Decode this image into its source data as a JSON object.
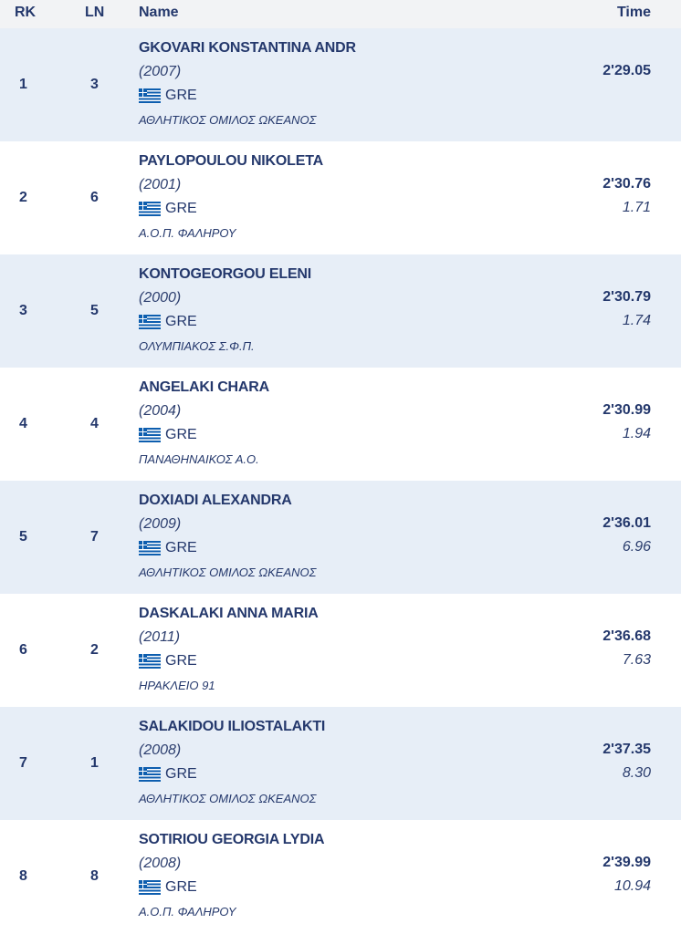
{
  "header": {
    "rk": "RK",
    "ln": "LN",
    "name": "Name",
    "time": "Time"
  },
  "results": [
    {
      "rank": "1",
      "lane": "3",
      "name": "GKOVARI KONSTANTINA ANDR",
      "year": "(2007)",
      "country": "GRE",
      "club": "ΑΘΛΗΤΙΚΟΣ ΟΜΙΛΟΣ ΩΚΕΑΝΟΣ",
      "time": "2'29.05",
      "behind": ""
    },
    {
      "rank": "2",
      "lane": "6",
      "name": "PAYLOPOULOU NIKOLETA",
      "year": "(2001)",
      "country": "GRE",
      "club": "Α.Ο.Π. ΦΑΛΗΡΟΥ",
      "time": "2'30.76",
      "behind": "1.71"
    },
    {
      "rank": "3",
      "lane": "5",
      "name": "KONTOGEORGOU ELENI",
      "year": "(2000)",
      "country": "GRE",
      "club": "ΟΛΥΜΠΙΑΚΟΣ Σ.Φ.Π.",
      "time": "2'30.79",
      "behind": "1.74"
    },
    {
      "rank": "4",
      "lane": "4",
      "name": "ANGELAKI CHARA",
      "year": "(2004)",
      "country": "GRE",
      "club": "ΠΑΝΑΘΗΝΑΙΚΟΣ Α.Ο.",
      "time": "2'30.99",
      "behind": "1.94"
    },
    {
      "rank": "5",
      "lane": "7",
      "name": "DOXIADI ALEXANDRA",
      "year": "(2009)",
      "country": "GRE",
      "club": "ΑΘΛΗΤΙΚΟΣ ΟΜΙΛΟΣ ΩΚΕΑΝΟΣ",
      "time": "2'36.01",
      "behind": "6.96"
    },
    {
      "rank": "6",
      "lane": "2",
      "name": "DASKALAKI ANNA MARIA",
      "year": "(2011)",
      "country": "GRE",
      "club": "ΗΡΑΚΛΕΙΟ 91",
      "time": "2'36.68",
      "behind": "7.63"
    },
    {
      "rank": "7",
      "lane": "1",
      "name": "SALAKIDOU ILIOSTALAKTI",
      "year": "(2008)",
      "country": "GRE",
      "club": "ΑΘΛΗΤΙΚΟΣ ΟΜΙΛΟΣ ΩΚΕΑΝΟΣ",
      "time": "2'37.35",
      "behind": "8.30"
    },
    {
      "rank": "8",
      "lane": "8",
      "name": "SOTIRIOU GEORGIA LYDIA",
      "year": "(2008)",
      "country": "GRE",
      "club": "Α.Ο.Π. ΦΑΛΗΡΟΥ",
      "time": "2'39.99",
      "behind": "10.94"
    }
  ],
  "colors": {
    "row_alt": "#e7eef7",
    "header_bg": "#f2f3f5",
    "text": "#24386c",
    "flag_blue": "#0d5eaf"
  },
  "icons": {
    "flag": "greece-flag-icon"
  }
}
